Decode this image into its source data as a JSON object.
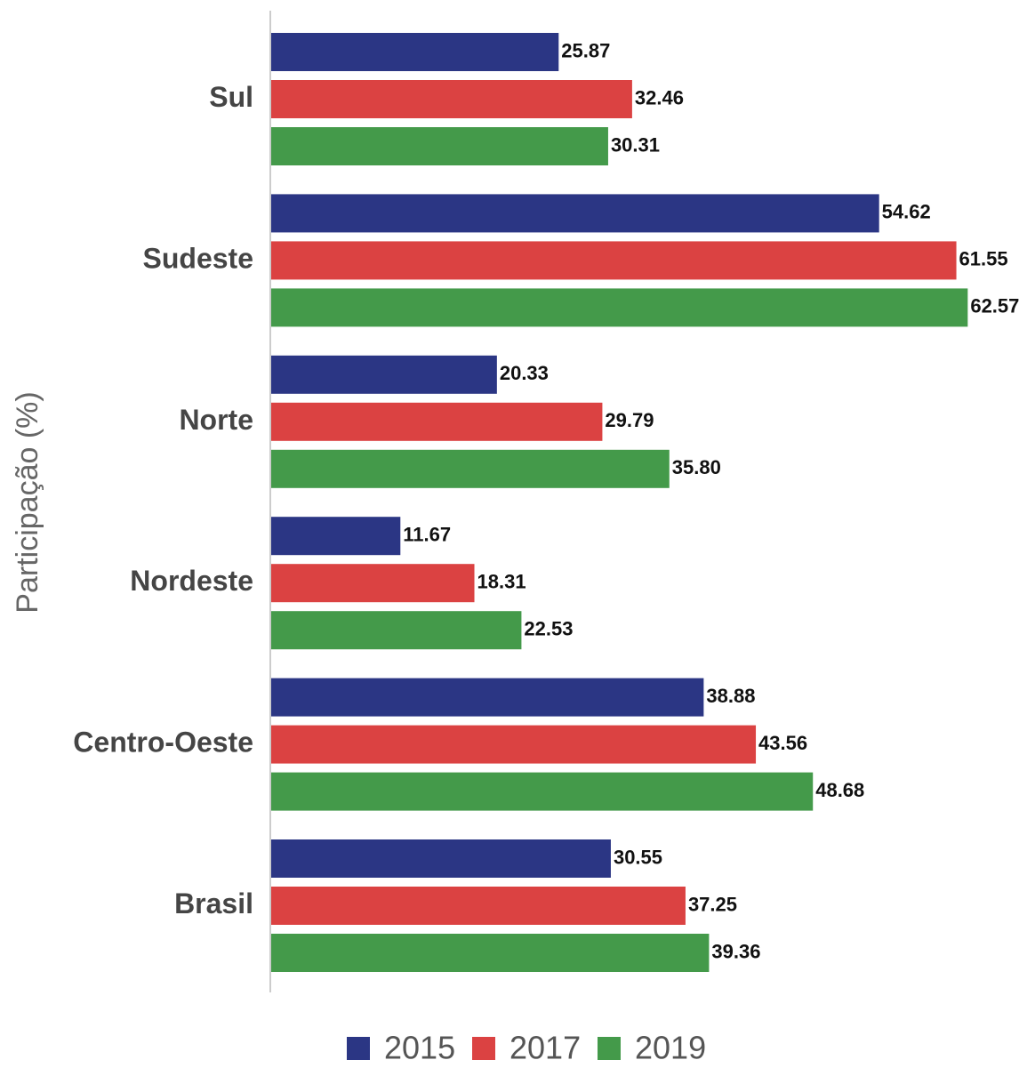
{
  "chart_data": {
    "type": "bar",
    "orientation": "horizontal",
    "title": "",
    "xlabel": "",
    "ylabel": "Participação (%)",
    "categories": [
      "Sul",
      "Sudeste",
      "Norte",
      "Nordeste",
      "Centro-Oeste",
      "Brasil"
    ],
    "series": [
      {
        "name": "2015",
        "color": "#2b3684",
        "values": [
          25.87,
          54.62,
          20.33,
          11.67,
          38.88,
          30.55
        ],
        "labels": [
          "25.87",
          "54.62",
          "20.33",
          "11.67",
          "38.88",
          "30.55"
        ]
      },
      {
        "name": "2017",
        "color": "#db4242",
        "values": [
          32.46,
          61.55,
          29.79,
          18.31,
          43.56,
          37.25
        ],
        "labels": [
          "32.46",
          "61.55",
          "29.79",
          "18.31",
          "43.56",
          "37.25"
        ]
      },
      {
        "name": "2019",
        "color": "#449a4a",
        "values": [
          30.31,
          62.57,
          35.8,
          22.53,
          48.68,
          39.36
        ],
        "labels": [
          "30.31",
          "62.57",
          "35.80",
          "22.53",
          "48.68",
          "39.36"
        ]
      }
    ],
    "xlim": [
      0,
      63.5
    ],
    "grid": false,
    "legend": "bottom-center"
  }
}
